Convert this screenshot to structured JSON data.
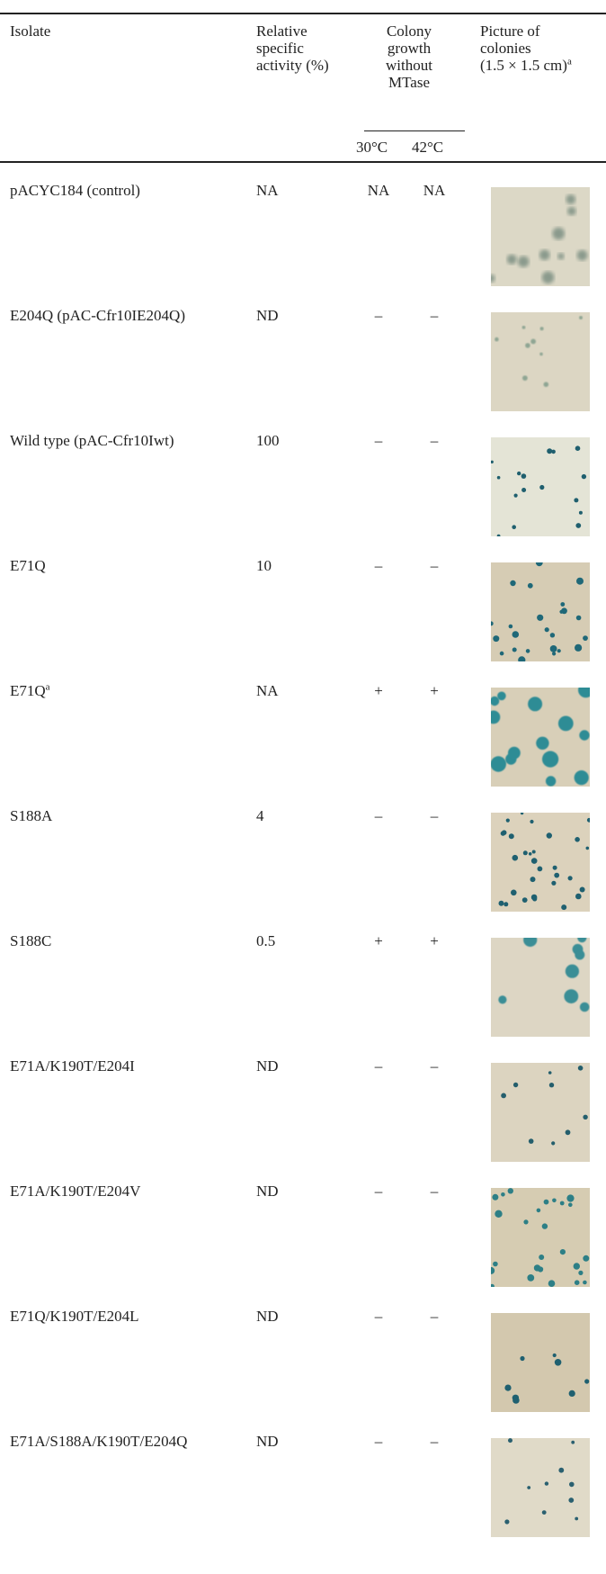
{
  "table": {
    "header": {
      "isolate": [
        "Isolate"
      ],
      "activity": [
        "Relative",
        "specific",
        "activity (%)"
      ],
      "growth": [
        "Colony",
        "growth",
        "without",
        "MTase"
      ],
      "picture": [
        "Picture of",
        "colonies",
        "(1.5 × 1.5 cm)"
      ],
      "picture_sup": "a",
      "temp_30": "30°C",
      "temp_42": "42°C"
    },
    "rows": [
      {
        "isolate": "pACYC184 (control)",
        "activity": "NA",
        "growth_30": "NA",
        "growth_42": "NA"
      },
      {
        "isolate": "E204Q (pAC-Cfr10IE204Q)",
        "activity": "ND",
        "growth_30": "–",
        "growth_42": "–"
      },
      {
        "isolate": "Wild type (pAC-Cfr10Iwt)",
        "activity": 100,
        "growth_30": "–",
        "growth_42": "–"
      },
      {
        "isolate": "E71Q",
        "activity": 10,
        "growth_30": "–",
        "growth_42": "–"
      },
      {
        "isolate": "E71Q",
        "isolate_sup": "a",
        "activity": "NA",
        "growth_30": "+",
        "growth_42": "+"
      },
      {
        "isolate": "S188A",
        "activity": 4,
        "growth_30": "–",
        "growth_42": "–"
      },
      {
        "isolate": "S188C",
        "activity": 0.5,
        "growth_30": "+",
        "growth_42": "+"
      },
      {
        "isolate": "E71A/K190T/E204I",
        "activity": "ND",
        "growth_30": "–",
        "growth_42": "–"
      },
      {
        "isolate": "E71A/K190T/E204V",
        "activity": "ND",
        "growth_30": "–",
        "growth_42": "–"
      },
      {
        "isolate": "E71Q/K190T/E204L",
        "activity": "ND",
        "growth_30": "–",
        "growth_42": "–"
      },
      {
        "isolate": "E71A/S188A/K190T/E204Q",
        "activity": "ND",
        "growth_30": "–",
        "growth_42": "–"
      }
    ]
  }
}
